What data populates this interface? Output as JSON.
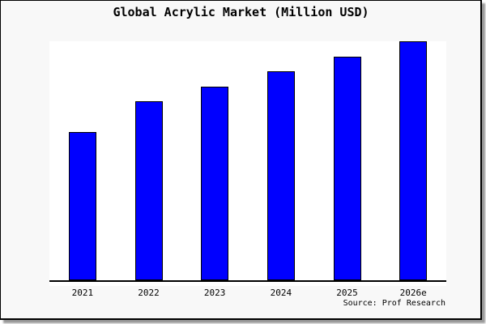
{
  "chart_data": {
    "type": "bar",
    "title": "Global Acrylic Market (Million USD)",
    "categories": [
      "2021",
      "2022",
      "2023",
      "2024",
      "2025",
      "2026e"
    ],
    "series": [
      {
        "name": "Global Acrylic Market",
        "values_pct_of_max": [
          62.2,
          74.8,
          81.1,
          87.5,
          93.6,
          100
        ]
      }
    ],
    "xlabel": "",
    "ylabel": "",
    "y_axis_ticks_visible": false,
    "grid": false,
    "legend_position": "none",
    "source_note": "Source: Prof Research",
    "bar_color": "#0000ff",
    "bar_border_color": "#000000"
  },
  "colors": {
    "page_background": "#f8f8f8",
    "plot_background": "#ffffff",
    "axis_color": "#000000",
    "text_color": "#000000",
    "frame_border": "#000000",
    "frame_shadow": "#999999"
  }
}
